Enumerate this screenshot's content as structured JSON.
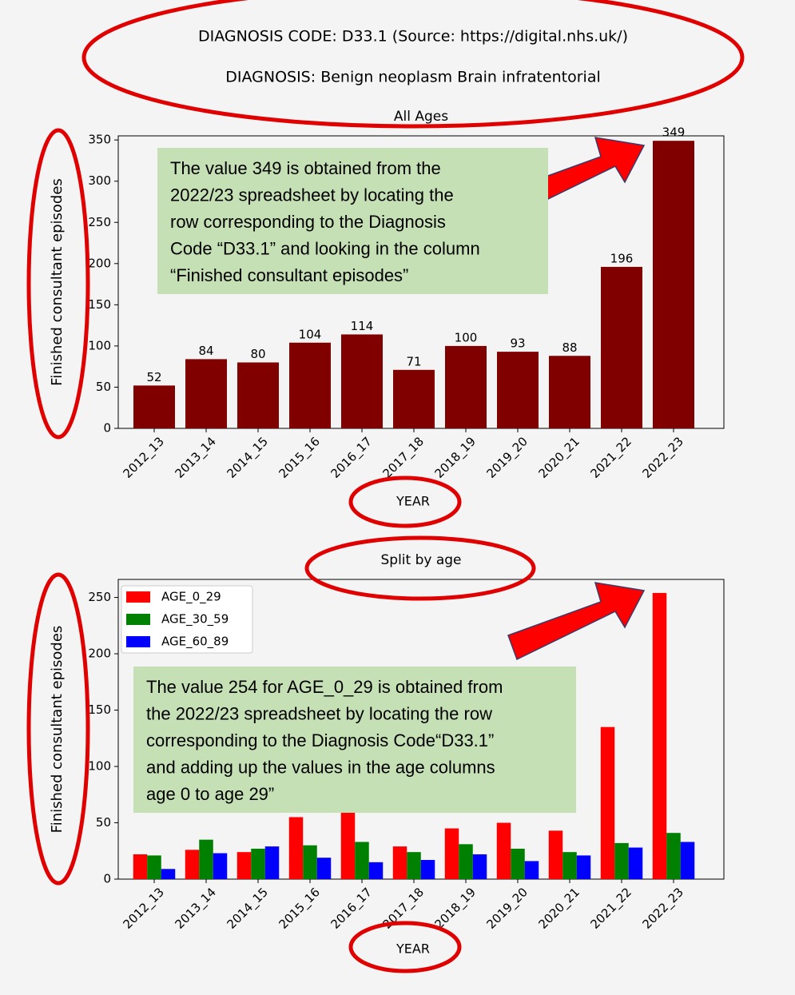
{
  "header": {
    "code_line": "DIAGNOSIS CODE: D33.1 (Source: https://digital.nhs.uk/)",
    "diagnosis_line": "DIAGNOSIS: Benign neoplasm Brain infratentorial"
  },
  "chart_data": [
    {
      "type": "bar",
      "title": "All Ages",
      "x_label": "YEAR",
      "y_label": "Finished consultant episodes",
      "categories": [
        "2012_13",
        "2013_14",
        "2014_15",
        "2015_16",
        "2016_17",
        "2017_18",
        "2018_19",
        "2019_20",
        "2020_21",
        "2021_22",
        "2022_23"
      ],
      "values": [
        52,
        84,
        80,
        104,
        114,
        71,
        100,
        93,
        88,
        196,
        349
      ],
      "color": "#800000",
      "ylim": [
        0,
        355
      ],
      "yticks": [
        0,
        50,
        100,
        150,
        200,
        250,
        300,
        350
      ],
      "annotation": [
        "The value 349 is obtained from the",
        "2022/23 spreadsheet by locating the",
        "row corresponding to the Diagnosis",
        "Code “D33.1” and looking in the column",
        "“Finished consultant episodes”"
      ]
    },
    {
      "type": "grouped_bar",
      "title": "Split by age",
      "x_label": "YEAR",
      "y_label": "Finished consultant episodes",
      "categories": [
        "2012_13",
        "2013_14",
        "2014_15",
        "2015_16",
        "2016_17",
        "2017_18",
        "2018_19",
        "2019_20",
        "2020_21",
        "2021_22",
        "2022_23"
      ],
      "series": [
        {
          "name": "AGE_0_29",
          "color": "#ff0000",
          "values": [
            22,
            26,
            24,
            55,
            60,
            29,
            45,
            50,
            43,
            135,
            254
          ]
        },
        {
          "name": "AGE_30_59",
          "color": "#008000",
          "values": [
            21,
            35,
            27,
            30,
            33,
            24,
            31,
            27,
            24,
            32,
            41
          ]
        },
        {
          "name": "AGE_60_89",
          "color": "#0000ff",
          "values": [
            9,
            23,
            29,
            19,
            15,
            17,
            22,
            16,
            21,
            28,
            33
          ]
        }
      ],
      "ylim": [
        0,
        266
      ],
      "yticks": [
        0,
        50,
        100,
        150,
        200,
        250
      ],
      "legend": "upper left",
      "annotation": [
        "The value 254 for AGE_0_29 is obtained from",
        "the 2022/23 spreadsheet by locating the row",
        "corresponding to the Diagnosis Code“D33.1”",
        "and adding up the values in the age columns",
        "age 0 to age 29”"
      ]
    }
  ]
}
